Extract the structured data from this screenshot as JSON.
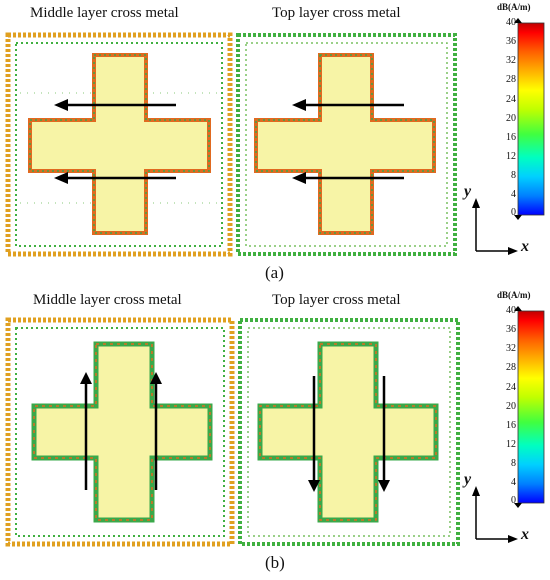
{
  "row_a": {
    "left_title": "Middle layer cross metal",
    "right_title": "Top layer cross metal",
    "caption": "(a)",
    "legend": {
      "title": "dB(A/m)",
      "ticks": [
        "40",
        "36",
        "32",
        "28",
        "24",
        "20",
        "16",
        "12",
        "8",
        "4",
        "0"
      ]
    },
    "axes": {
      "y": "y",
      "x": "x"
    },
    "current_direction": "horizontal, pointing left (both panels)"
  },
  "row_b": {
    "left_title": "Middle layer cross metal",
    "right_title": "Top layer cross metal",
    "caption": "(b)",
    "legend": {
      "title": "dB(A/m)",
      "ticks": [
        "40",
        "36",
        "32",
        "28",
        "24",
        "20",
        "16",
        "12",
        "8",
        "4",
        "0"
      ]
    },
    "axes": {
      "y": "y",
      "x": "x"
    },
    "current_direction": "vertical: up in middle layer, down in top layer"
  },
  "colors": {
    "colormap": [
      "#0000ff",
      "#0080ff",
      "#00d0ff",
      "#00ffc0",
      "#40ff40",
      "#c0ff00",
      "#ffff00",
      "#ffb000",
      "#ff6000",
      "#ff0000",
      "#c00000"
    ],
    "field_fill": "#f7f4a6",
    "arrow": "#000000"
  }
}
